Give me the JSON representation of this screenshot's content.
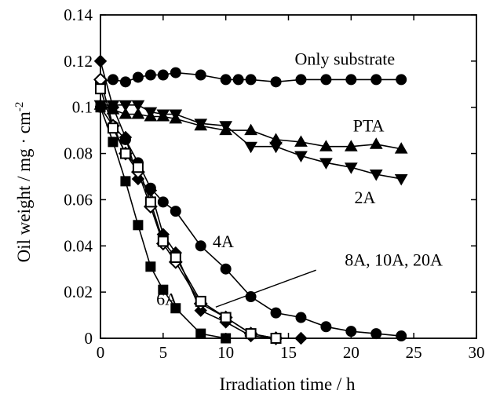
{
  "chart_data": {
    "type": "line",
    "xlabel": "Irradiation time / h",
    "ylabel": "Oil weight / mg · cm",
    "ylabel_sup": "-2",
    "xlim": [
      0,
      30
    ],
    "ylim": [
      0,
      0.14
    ],
    "xticks": [
      "0",
      "5",
      "10",
      "15",
      "20",
      "25",
      "30"
    ],
    "yticks": [
      "0",
      "0.02",
      "0.04",
      "0.06",
      "0.08",
      "0.1",
      "0.12",
      "0.14"
    ],
    "grid": false,
    "series": [
      {
        "name": "Only substrate",
        "marker": "filled-circle",
        "x": [
          0,
          1,
          2,
          3,
          4,
          5,
          6,
          8,
          10,
          11,
          12,
          14,
          16,
          18,
          20,
          22,
          24
        ],
        "y": [
          0.111,
          0.112,
          0.111,
          0.113,
          0.114,
          0.114,
          0.115,
          0.114,
          0.112,
          0.112,
          0.112,
          0.111,
          0.112,
          0.112,
          0.112,
          0.112,
          0.112
        ]
      },
      {
        "name": "PTA",
        "marker": "filled-triangle-up",
        "x": [
          0,
          1,
          2,
          3,
          4,
          5,
          6,
          8,
          10,
          12,
          14,
          16,
          18,
          20,
          22,
          24
        ],
        "y": [
          0.101,
          0.099,
          0.097,
          0.097,
          0.096,
          0.096,
          0.095,
          0.092,
          0.09,
          0.09,
          0.086,
          0.085,
          0.083,
          0.083,
          0.084,
          0.082
        ]
      },
      {
        "name": "2A",
        "marker": "filled-triangle-down",
        "x": [
          0,
          1,
          2,
          3,
          4,
          5,
          6,
          8,
          10,
          12,
          14,
          16,
          18,
          20,
          22,
          24
        ],
        "y": [
          0.101,
          0.101,
          0.101,
          0.101,
          0.098,
          0.097,
          0.097,
          0.093,
          0.092,
          0.083,
          0.083,
          0.079,
          0.076,
          0.074,
          0.071,
          0.069
        ]
      },
      {
        "name": "4A",
        "marker": "filled-circle",
        "x": [
          0,
          1,
          2,
          3,
          4,
          5,
          6,
          8,
          10,
          12,
          14,
          16,
          18,
          20,
          22,
          24
        ],
        "y": [
          0.1,
          0.092,
          0.086,
          0.076,
          0.065,
          0.059,
          0.055,
          0.04,
          0.03,
          0.018,
          0.011,
          0.009,
          0.005,
          0.003,
          0.002,
          0.001
        ]
      },
      {
        "name": "6A",
        "marker": "filled-square",
        "x": [
          0,
          1,
          2,
          3,
          4,
          5,
          6,
          8,
          10
        ],
        "y": [
          0.1,
          0.085,
          0.068,
          0.049,
          0.031,
          0.021,
          0.013,
          0.002,
          0.0
        ]
      },
      {
        "name": "8A",
        "marker": "open-diamond",
        "x": [
          0,
          1,
          2,
          3,
          4,
          5,
          6,
          8,
          10,
          12,
          14
        ],
        "y": [
          0.112,
          0.092,
          0.08,
          0.072,
          0.057,
          0.041,
          0.033,
          0.015,
          0.009,
          0.002,
          0.0
        ]
      },
      {
        "name": "10A",
        "marker": "open-square",
        "x": [
          0,
          1,
          2,
          3,
          4,
          5,
          6,
          8,
          10,
          12,
          14
        ],
        "y": [
          0.108,
          0.091,
          0.08,
          0.074,
          0.059,
          0.042,
          0.035,
          0.016,
          0.009,
          0.002,
          0.0
        ]
      },
      {
        "name": "20A",
        "marker": "filled-diamond",
        "x": [
          0,
          1,
          2,
          3,
          4,
          5,
          6,
          8,
          10,
          12,
          14,
          16
        ],
        "y": [
          0.12,
          0.1,
          0.087,
          0.069,
          0.064,
          0.045,
          0.037,
          0.012,
          0.007,
          0.001,
          0.0,
          0.0
        ]
      }
    ],
    "annotations": [
      {
        "text": "Only substrate",
        "x": 19.5,
        "y": 0.1185
      },
      {
        "text": "PTA",
        "x": 21.4,
        "y": 0.0895
      },
      {
        "text": "2A",
        "x": 21.1,
        "y": 0.0585
      },
      {
        "text": "4A",
        "x": 9.8,
        "y": 0.0395
      },
      {
        "text": "8A, 10A, 20A",
        "x": 23.4,
        "y": 0.0315
      },
      {
        "text": "6A",
        "x": 5.3,
        "y": 0.0145
      }
    ],
    "leader_line": {
      "from": [
        17.2,
        0.0295
      ],
      "to": [
        9.2,
        0.0135
      ]
    }
  }
}
